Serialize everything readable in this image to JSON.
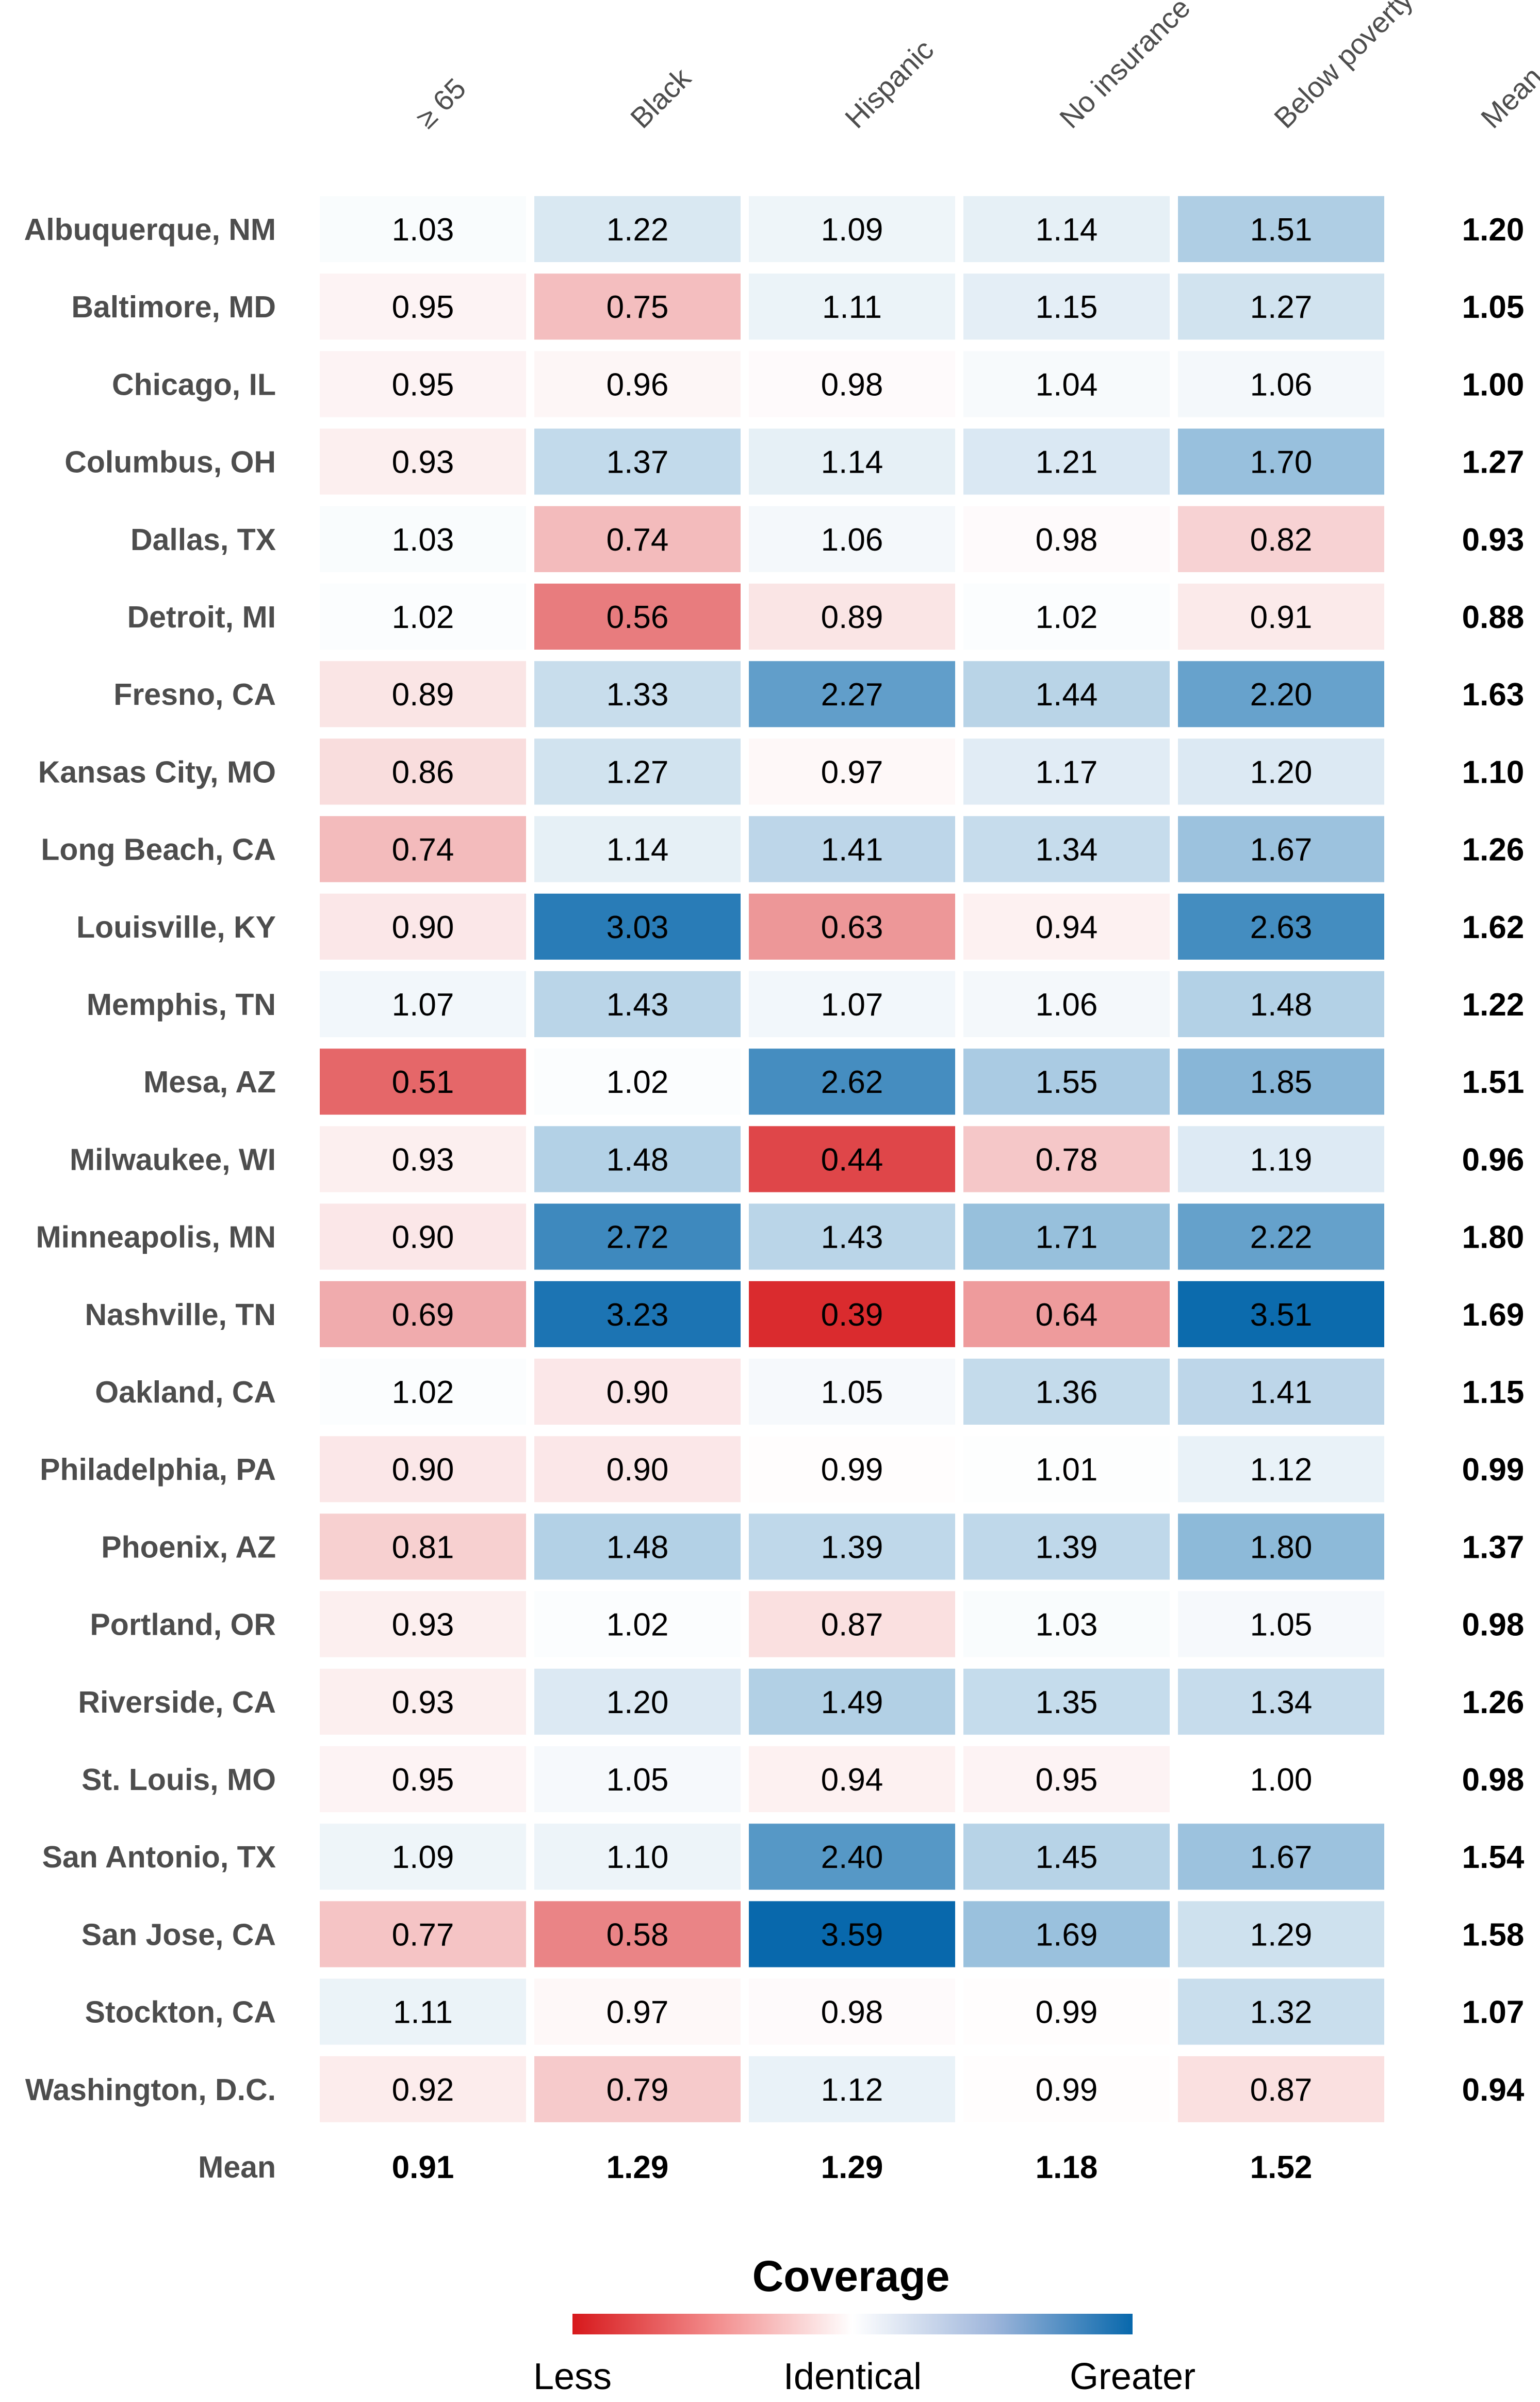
{
  "chart_data": {
    "type": "heatmap",
    "columns": [
      "≥ 65",
      "Black",
      "Hispanic",
      "No insurance",
      "Below poverty"
    ],
    "mean_column_label": "Mean",
    "mean_row_label": "Mean",
    "rows": [
      {
        "city": "Albuquerque, NM",
        "values": [
          1.03,
          1.22,
          1.09,
          1.14,
          1.51
        ],
        "mean": 1.2
      },
      {
        "city": "Baltimore, MD",
        "values": [
          0.95,
          0.75,
          1.11,
          1.15,
          1.27
        ],
        "mean": 1.05
      },
      {
        "city": "Chicago, IL",
        "values": [
          0.95,
          0.96,
          0.98,
          1.04,
          1.06
        ],
        "mean": 1.0
      },
      {
        "city": "Columbus, OH",
        "values": [
          0.93,
          1.37,
          1.14,
          1.21,
          1.7
        ],
        "mean": 1.27
      },
      {
        "city": "Dallas, TX",
        "values": [
          1.03,
          0.74,
          1.06,
          0.98,
          0.82
        ],
        "mean": 0.93
      },
      {
        "city": "Detroit, MI",
        "values": [
          1.02,
          0.56,
          0.89,
          1.02,
          0.91
        ],
        "mean": 0.88
      },
      {
        "city": "Fresno, CA",
        "values": [
          0.89,
          1.33,
          2.27,
          1.44,
          2.2
        ],
        "mean": 1.63
      },
      {
        "city": "Kansas City, MO",
        "values": [
          0.86,
          1.27,
          0.97,
          1.17,
          1.2
        ],
        "mean": 1.1
      },
      {
        "city": "Long Beach, CA",
        "values": [
          0.74,
          1.14,
          1.41,
          1.34,
          1.67
        ],
        "mean": 1.26
      },
      {
        "city": "Louisville, KY",
        "values": [
          0.9,
          3.03,
          0.63,
          0.94,
          2.63
        ],
        "mean": 1.62
      },
      {
        "city": "Memphis, TN",
        "values": [
          1.07,
          1.43,
          1.07,
          1.06,
          1.48
        ],
        "mean": 1.22
      },
      {
        "city": "Mesa, AZ",
        "values": [
          0.51,
          1.02,
          2.62,
          1.55,
          1.85
        ],
        "mean": 1.51
      },
      {
        "city": "Milwaukee, WI",
        "values": [
          0.93,
          1.48,
          0.44,
          0.78,
          1.19
        ],
        "mean": 0.96
      },
      {
        "city": "Minneapolis, MN",
        "values": [
          0.9,
          2.72,
          1.43,
          1.71,
          2.22
        ],
        "mean": 1.8
      },
      {
        "city": "Nashville, TN",
        "values": [
          0.69,
          3.23,
          0.39,
          0.64,
          3.51
        ],
        "mean": 1.69
      },
      {
        "city": "Oakland, CA",
        "values": [
          1.02,
          0.9,
          1.05,
          1.36,
          1.41
        ],
        "mean": 1.15
      },
      {
        "city": "Philadelphia, PA",
        "values": [
          0.9,
          0.9,
          0.99,
          1.01,
          1.12
        ],
        "mean": 0.99
      },
      {
        "city": "Phoenix, AZ",
        "values": [
          0.81,
          1.48,
          1.39,
          1.39,
          1.8
        ],
        "mean": 1.37
      },
      {
        "city": "Portland, OR",
        "values": [
          0.93,
          1.02,
          0.87,
          1.03,
          1.05
        ],
        "mean": 0.98
      },
      {
        "city": "Riverside, CA",
        "values": [
          0.93,
          1.2,
          1.49,
          1.35,
          1.34
        ],
        "mean": 1.26
      },
      {
        "city": "St. Louis, MO",
        "values": [
          0.95,
          1.05,
          0.94,
          0.95,
          1.0
        ],
        "mean": 0.98
      },
      {
        "city": "San Antonio, TX",
        "values": [
          1.09,
          1.1,
          2.4,
          1.45,
          1.67
        ],
        "mean": 1.54
      },
      {
        "city": "San Jose, CA",
        "values": [
          0.77,
          0.58,
          3.59,
          1.69,
          1.29
        ],
        "mean": 1.58
      },
      {
        "city": "Stockton, CA",
        "values": [
          1.11,
          0.97,
          0.98,
          0.99,
          1.32
        ],
        "mean": 1.07
      },
      {
        "city": "Washington, D.C.",
        "values": [
          0.92,
          0.79,
          1.12,
          0.99,
          0.87
        ],
        "mean": 0.94
      }
    ],
    "column_means": [
      0.91,
      1.29,
      1.29,
      1.18,
      1.52
    ],
    "legend": {
      "title": "Coverage",
      "low_label": "Less",
      "mid_label": "Identical",
      "high_label": "Greater",
      "low_color": "#d7191c",
      "mid_color": "#ffffff",
      "high_color": "#0868ac"
    }
  }
}
